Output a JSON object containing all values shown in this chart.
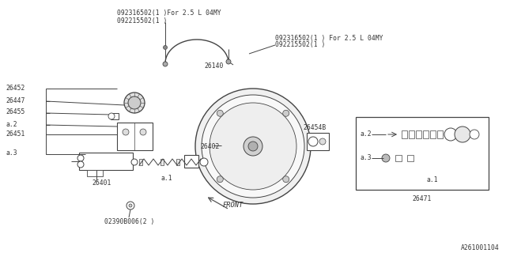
{
  "bg": "#ffffff",
  "lc": "#444444",
  "tc": "#333333",
  "fs": 5.8,
  "diagram_id": "A261001104",
  "tl1": "092316502(1 )For 2.5 L 04MY",
  "tl2": "092215502(1 )",
  "tr1": "092316502(1 ) For 2.5 L 04MY",
  "tr2": "092215502(1 )",
  "lbl_26140": "26140",
  "lbl_26452": "26452",
  "lbl_26447": "26447",
  "lbl_26455": "26455",
  "lbl_a2": "a.2",
  "lbl_26451": "26451",
  "lbl_a3": "a.3",
  "lbl_26402": "26402",
  "lbl_26454B": "26454B",
  "lbl_26401": "26401",
  "lbl_02390": "02390B006(2 )",
  "lbl_a1": "a.1",
  "lbl_26471": "26471",
  "lbl_a2i": "a.2",
  "lbl_a3i": "a.3",
  "lbl_a1i": "a.1",
  "lbl_FRONT": "FRONT"
}
